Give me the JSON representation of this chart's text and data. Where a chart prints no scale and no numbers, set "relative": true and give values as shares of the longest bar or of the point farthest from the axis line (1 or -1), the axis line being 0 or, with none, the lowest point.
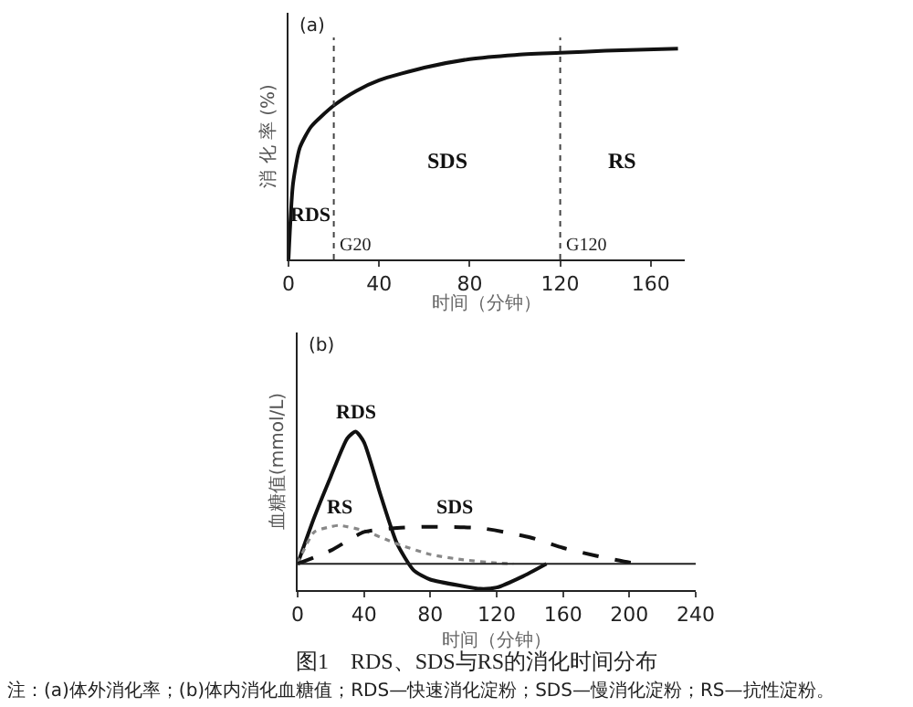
{
  "chart_data": [
    {
      "type": "line",
      "title": "(a)",
      "xlabel": "时间（分钟）",
      "ylabel": "消 化 率 (%)",
      "relative": true,
      "x": [
        0,
        2,
        5,
        10,
        20,
        30,
        40,
        60,
        80,
        100,
        120,
        140,
        172
      ],
      "series": [
        {
          "color": "#111111",
          "values": [
            0,
            0.36,
            0.53,
            0.63,
            0.73,
            0.8,
            0.85,
            0.91,
            0.95,
            0.97,
            0.98,
            0.99,
            1
          ]
        }
      ],
      "xlim": [
        0,
        175
      ],
      "xticks": [
        0,
        40,
        80,
        120,
        160
      ],
      "ref_lines": [
        {
          "axis": "x",
          "value": 20,
          "label": "G20",
          "line_style": "dotted"
        },
        {
          "axis": "x",
          "value": 120,
          "label": "G120",
          "line_style": "dotted"
        }
      ],
      "annotations": [
        "RDS",
        "SDS",
        "RS"
      ],
      "grid": false,
      "legend": false,
      "marker": "none"
    },
    {
      "type": "line",
      "title": "(b)",
      "xlabel": "时间（分钟）",
      "ylabel": "血糖值(mmol/L)",
      "relative": true,
      "series": [
        {
          "name": "RDS",
          "color": "#111111",
          "line_style": "solid",
          "x": [
            0,
            10,
            20,
            30,
            35,
            40,
            50,
            60,
            70,
            80,
            100,
            110,
            120,
            135,
            150
          ],
          "values": [
            0,
            0.35,
            0.66,
            0.95,
            1,
            0.92,
            0.52,
            0.15,
            -0.05,
            -0.12,
            -0.17,
            -0.19,
            -0.18,
            -0.1,
            0
          ]
        },
        {
          "name": "RS",
          "color": "#888888",
          "line_style": "dotted",
          "x": [
            0,
            10,
            20,
            25,
            40,
            60,
            80,
            100,
            120,
            130
          ],
          "values": [
            0,
            0.24,
            0.28,
            0.29,
            0.25,
            0.15,
            0.07,
            0.03,
            0.005,
            0
          ]
        },
        {
          "name": "SDS",
          "color": "#111111",
          "line_style": "dashed",
          "x": [
            0,
            20,
            40,
            60,
            80,
            110,
            140,
            160,
            180,
            200,
            210
          ],
          "values": [
            0,
            0.1,
            0.24,
            0.27,
            0.28,
            0.27,
            0.2,
            0.12,
            0.06,
            0.01,
            0
          ]
        }
      ],
      "xlim": [
        0,
        240
      ],
      "xticks": [
        0,
        40,
        80,
        120,
        160,
        200,
        240
      ],
      "annotations": [
        "图1　RDS、SDS与RS的消化时间分布",
        "注：(a)体外消化率；(b)体内消化血糖值；RDS—快速消化淀粉；SDS—慢消化淀粉；RS—抗性淀粉。"
      ],
      "grid": false,
      "legend": false,
      "marker": "none"
    }
  ]
}
